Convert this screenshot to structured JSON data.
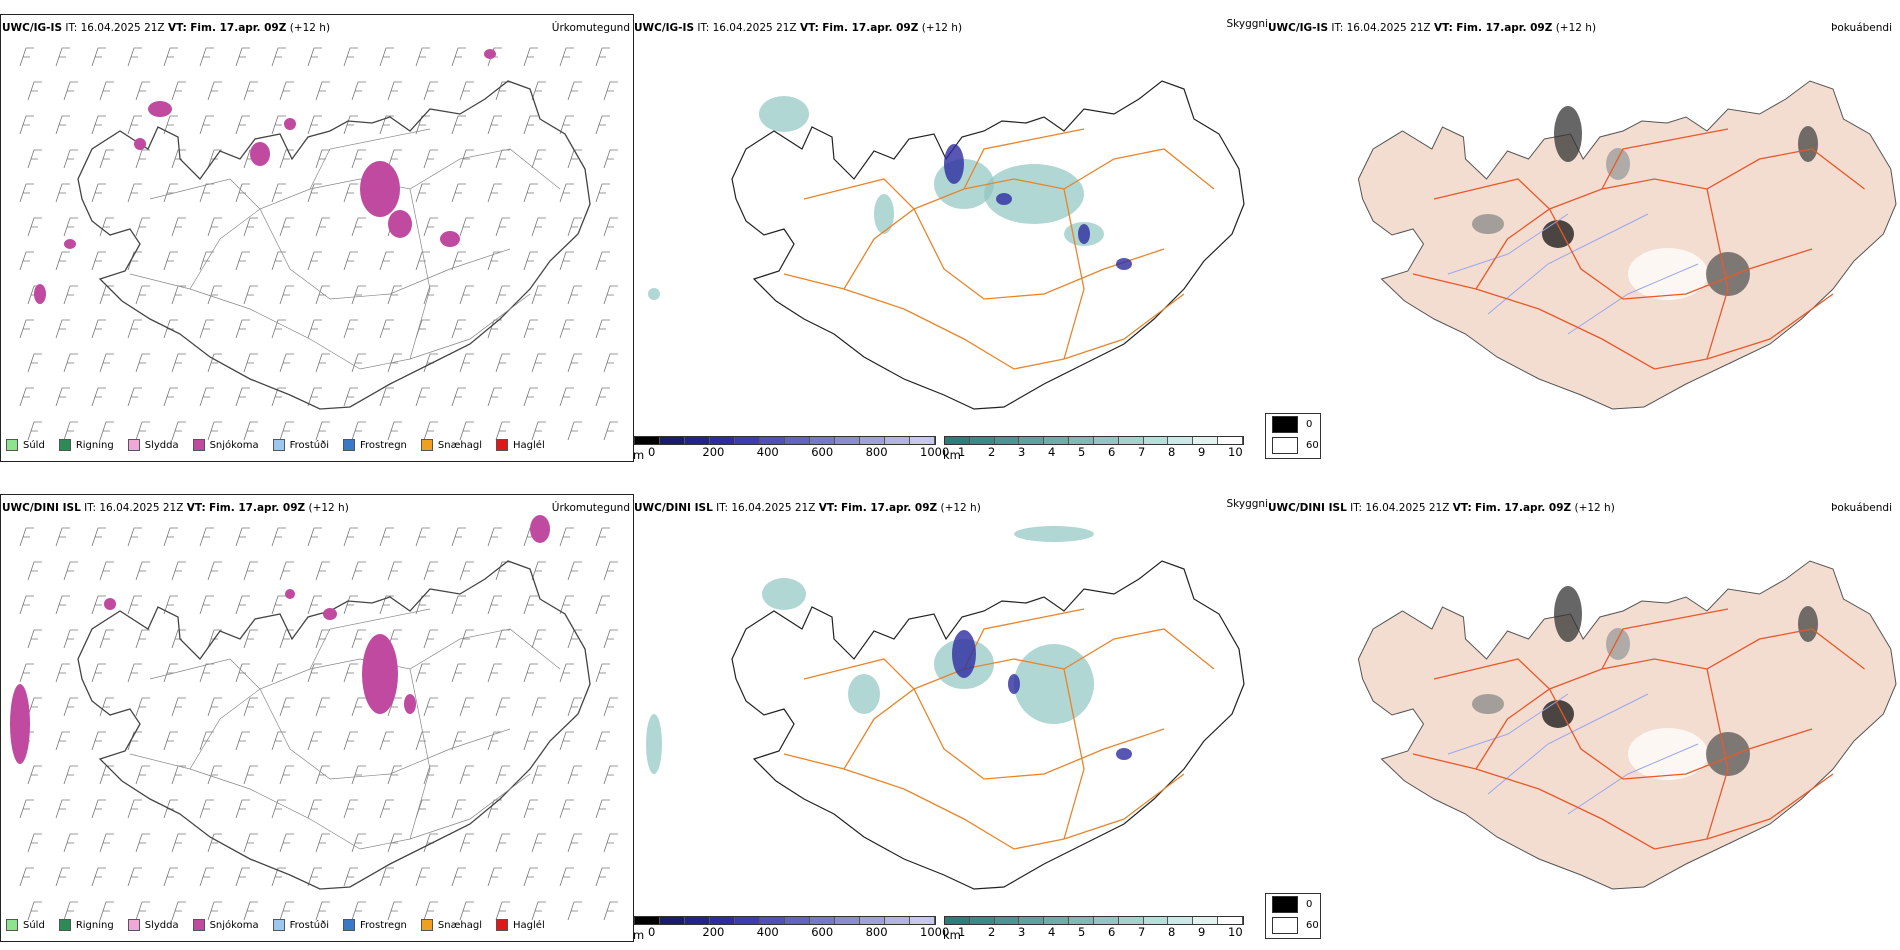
{
  "rows": [
    {
      "model": "UWC/IG-IS",
      "it_label": "IT:",
      "it_value": "16.04.2025 21Z",
      "vt_label": "VT:",
      "vt_value": "Fim. 17.apr. 09Z",
      "lead": "(+12 h)",
      "panels": {
        "precip": "Úrkomutegund",
        "cloud": "Skyggni",
        "fog": "Þokuábendi"
      }
    },
    {
      "model": "UWC/DINI ISL",
      "it_label": "IT:",
      "it_value": "16.04.2025 21Z",
      "vt_label": "VT:",
      "vt_value": "Fim. 17.apr. 09Z",
      "lead": "(+12 h)",
      "panels": {
        "precip": "Úrkomutegund",
        "cloud": "Skyggni",
        "fog": "Þokuábendi"
      }
    }
  ],
  "precip_legend": [
    {
      "label": "Súld",
      "color": "#8fe38f"
    },
    {
      "label": "Rigning",
      "color": "#2e8b57"
    },
    {
      "label": "Slydda",
      "color": "#f0a8d8"
    },
    {
      "label": "Snjókoma",
      "color": "#c04aa0"
    },
    {
      "label": "Frostúði",
      "color": "#9cc8f0"
    },
    {
      "label": "Frostregn",
      "color": "#3a78c8"
    },
    {
      "label": "Snæhagl",
      "color": "#f0a020"
    },
    {
      "label": "Haglél",
      "color": "#e01818"
    }
  ],
  "ceiling_bar": {
    "unit": "m",
    "ticks": [
      "0",
      "200",
      "400",
      "600",
      "800",
      "1000"
    ],
    "colors": [
      "#000000",
      "#1a1a6e",
      "#23238c",
      "#2d2da0",
      "#3c3cb0",
      "#5050b8",
      "#6464c0",
      "#7878c8",
      "#8c8cd0",
      "#a0a0da",
      "#b4b4e2",
      "#c8c8ec"
    ]
  },
  "vis_bar": {
    "unit": "km",
    "ticks": [
      "1",
      "2",
      "3",
      "4",
      "5",
      "6",
      "7",
      "8",
      "9",
      "10"
    ],
    "colors": [
      "#2a7f7a",
      "#3a8a86",
      "#4b9692",
      "#5ca29e",
      "#6eaeaa",
      "#80bab6",
      "#93c6c2",
      "#a6d2ce",
      "#b9ddda",
      "#cde8e6",
      "#e2f2f1",
      "#ffffff"
    ]
  },
  "fog_legend": [
    {
      "label": "0",
      "color": "#000000"
    },
    {
      "label": "60",
      "color": "#ffffff"
    }
  ]
}
